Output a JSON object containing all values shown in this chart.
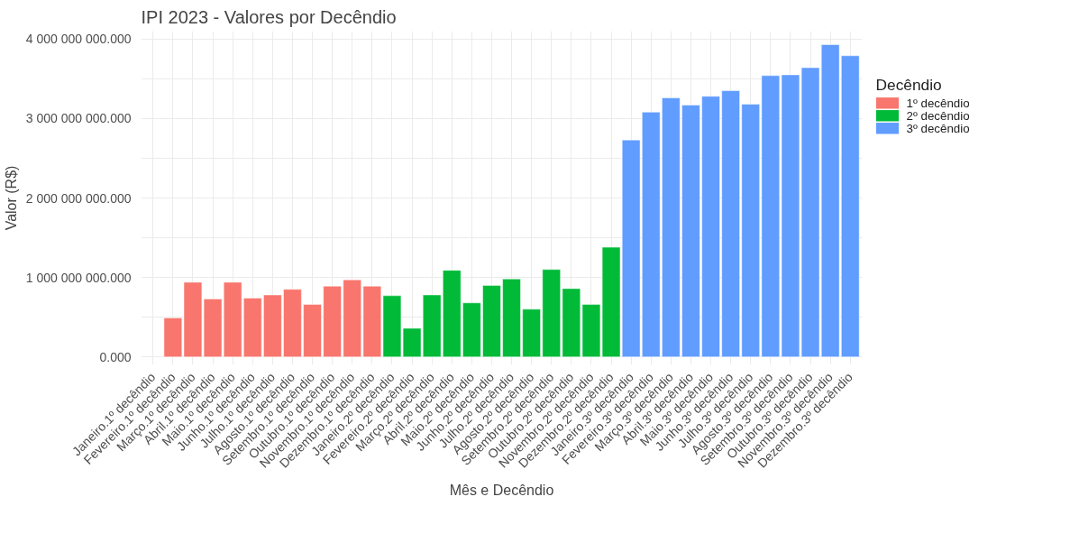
{
  "chart_data": {
    "type": "bar",
    "title": "IPI 2023 - Valores por Decêndio",
    "xlabel": "Mês e Decêndio",
    "ylabel": "Valor (R$)",
    "legend_title": "Decêndio",
    "categories": [
      "Janeiro.1º decêndio",
      "Fevereiro.1º decêndio",
      "Março.1º decêndio",
      "Abril.1º decêndio",
      "Maio.1º decêndio",
      "Junho.1º decêndio",
      "Julho.1º decêndio",
      "Agosto.1º decêndio",
      "Setembro.1º decêndio",
      "Outubro.1º decêndio",
      "Novembro.1º decêndio",
      "Dezembro.1º decêndio",
      "Janeiro.2º decêndio",
      "Fevereiro.2º decêndio",
      "Março.2º decêndio",
      "Abril.2º decêndio",
      "Maio.2º decêndio",
      "Junho.2º decêndio",
      "Julho.2º decêndio",
      "Agosto.2º decêndio",
      "Setembro.2º decêndio",
      "Outubro.2º decêndio",
      "Novembro.2º decêndio",
      "Dezembro.2º decêndio",
      "Janeiro.3º decêndio",
      "Fevereiro.3º decêndio",
      "Março.3º decêndio",
      "Abril.3º decêndio",
      "Maio.3º decêndio",
      "Junho.3º decêndio",
      "Julho.3º decêndio",
      "Agosto.3º decêndio",
      "Setembro.3º decêndio",
      "Outubro.3º decêndio",
      "Novembro.3º decêndio",
      "Dezembro.3º decêndio"
    ],
    "series": [
      {
        "name": "1º decêndio",
        "color": "#f8766d",
        "values": [
          null,
          490000000,
          940000000,
          730000000,
          940000000,
          740000000,
          780000000,
          850000000,
          660000000,
          890000000,
          970000000,
          890000000,
          null,
          null,
          null,
          null,
          null,
          null,
          null,
          null,
          null,
          null,
          null,
          null,
          null,
          null,
          null,
          null,
          null,
          null,
          null,
          null,
          null,
          null,
          null,
          null
        ]
      },
      {
        "name": "2º decêndio",
        "color": "#00ba38",
        "values": [
          null,
          null,
          null,
          null,
          null,
          null,
          null,
          null,
          null,
          null,
          null,
          null,
          770000000,
          360000000,
          780000000,
          1090000000,
          680000000,
          900000000,
          980000000,
          600000000,
          1100000000,
          860000000,
          660000000,
          1380000000,
          null,
          null,
          null,
          null,
          null,
          null,
          null,
          null,
          null,
          null,
          null,
          null
        ]
      },
      {
        "name": "3º decêndio",
        "color": "#619cff",
        "values": [
          null,
          null,
          null,
          null,
          null,
          null,
          null,
          null,
          null,
          null,
          null,
          null,
          null,
          null,
          null,
          null,
          null,
          null,
          null,
          null,
          null,
          null,
          null,
          null,
          2730000000,
          3080000000,
          3260000000,
          3170000000,
          3280000000,
          3350000000,
          3180000000,
          3540000000,
          3550000000,
          3640000000,
          3930000000,
          3790000000
        ]
      }
    ],
    "ylim": [
      -100000000,
      4100000000
    ],
    "yticks": [
      {
        "value": 0,
        "label": "0.000"
      },
      {
        "value": 500000000,
        "label": null
      },
      {
        "value": 1000000000,
        "label": "1 000 000 000.000"
      },
      {
        "value": 1500000000,
        "label": null
      },
      {
        "value": 2000000000,
        "label": "2 000 000 000.000"
      },
      {
        "value": 2500000000,
        "label": null
      },
      {
        "value": 3000000000,
        "label": "3 000 000 000.000"
      },
      {
        "value": 3500000000,
        "label": null
      },
      {
        "value": 4000000000,
        "label": "4 000 000 000.000"
      }
    ],
    "grid": true,
    "legend": "right"
  }
}
